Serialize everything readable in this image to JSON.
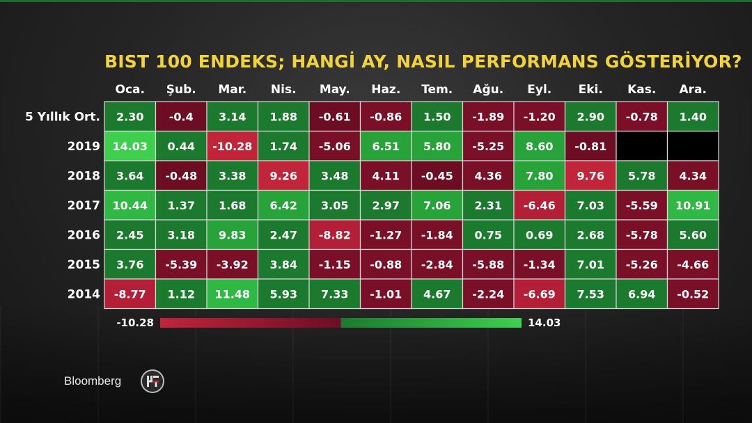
{
  "chart_data": {
    "type": "heatmap",
    "title": "BIST 100 ENDEKS; HANGİ AY, NASIL PERFORMANS GÖSTERİYOR?",
    "columns": [
      "Oca.",
      "Şub.",
      "Mar.",
      "Nis.",
      "May.",
      "Haz.",
      "Tem.",
      "Ağu.",
      "Eyl.",
      "Eki.",
      "Kas.",
      "Ara."
    ],
    "rows": [
      "5 Yıllık Ort.",
      "2019",
      "2018",
      "2017",
      "2016",
      "2015",
      "2014"
    ],
    "values": [
      [
        "2.30",
        "-0.4",
        "3.14",
        "1.88",
        "-0.61",
        "-0.86",
        "1.50",
        "-1.89",
        "-1.20",
        "2.90",
        "-0.78",
        "1.40"
      ],
      [
        "14.03",
        "0.44",
        "-10.28",
        "1.74",
        "-5.06",
        "6.51",
        "5.80",
        "-5.25",
        "8.60",
        "-0.81",
        null,
        null
      ],
      [
        "3.64",
        "-0.48",
        "3.38",
        "9.26",
        "3.48",
        "4.11",
        "-0.45",
        "4.36",
        "7.80",
        "9.76",
        "5.78",
        "4.34"
      ],
      [
        "10.44",
        "1.37",
        "1.68",
        "6.42",
        "3.05",
        "2.97",
        "7.06",
        "2.31",
        "-6.46",
        "7.03",
        "-5.59",
        "10.91"
      ],
      [
        "2.45",
        "3.18",
        "9.83",
        "2.47",
        "-8.82",
        "-1.27",
        "-1.84",
        "0.75",
        "0.69",
        "2.68",
        "-5.78",
        "5.60"
      ],
      [
        "3.76",
        "-5.39",
        "-3.92",
        "3.84",
        "-1.15",
        "-0.88",
        "-2.84",
        "-5.88",
        "-1.34",
        "7.01",
        "-5.26",
        "-4.66"
      ],
      [
        "-8.77",
        "1.12",
        "11.48",
        "5.93",
        "7.33",
        "-1.01",
        "4.67",
        "-2.24",
        "-6.69",
        "7.53",
        "6.94",
        "-0.52"
      ]
    ],
    "cell_colors": [
      [
        "#1b7a2e",
        "#6d0d24",
        "#1b7a2e",
        "#1b7a2e",
        "#6d0d24",
        "#7a0f28",
        "#1b7a2e",
        "#7a0f28",
        "#7a0f28",
        "#1b7a2e",
        "#7a0f28",
        "#1b7a2e"
      ],
      [
        "#3fcf4f",
        "#1b7a2e",
        "#c0253a",
        "#1b7a2e",
        "#7a0f28",
        "#27a33a",
        "#27a33a",
        "#7a0f28",
        "#27a33a",
        "#6d0d24",
        "#000000",
        "#000000"
      ],
      [
        "#1b7a2e",
        "#6d0d24",
        "#1b7a2e",
        "#c0253a",
        "#1b7a2e",
        "#7a0f28",
        "#6d0d24",
        "#7a0f28",
        "#27a33a",
        "#c0253a",
        "#1b7a2e",
        "#7a0f28"
      ],
      [
        "#2fb843",
        "#1b7a2e",
        "#1b7a2e",
        "#27a33a",
        "#1b7a2e",
        "#1b7a2e",
        "#27a33a",
        "#1b7a2e",
        "#b21f36",
        "#1b7a2e",
        "#7a0f28",
        "#2fb843"
      ],
      [
        "#1b7a2e",
        "#1b7a2e",
        "#27a33a",
        "#1b7a2e",
        "#b21f36",
        "#7a0f28",
        "#7a0f28",
        "#1b7a2e",
        "#1b7a2e",
        "#1b7a2e",
        "#7a0f28",
        "#1b7a2e"
      ],
      [
        "#1b7a2e",
        "#7a0f28",
        "#7a0f28",
        "#1b7a2e",
        "#7a0f28",
        "#7a0f28",
        "#7a0f28",
        "#7a0f28",
        "#7a0f28",
        "#1b7a2e",
        "#7a0f28",
        "#7a0f28"
      ],
      [
        "#b21f36",
        "#1b7a2e",
        "#2fb843",
        "#1b7a2e",
        "#1b7a2e",
        "#7a0f28",
        "#1b7a2e",
        "#7a0f28",
        "#b21f36",
        "#1b7a2e",
        "#1b7a2e",
        "#7a0f28"
      ]
    ],
    "legend": {
      "min_label": "-10.28",
      "max_label": "14.03",
      "colors": [
        "#c0253a",
        "#6d0d24",
        "#1b7a2e",
        "#3fcf4f"
      ]
    },
    "colors": {
      "title": "#f2d43a",
      "cell_border": "#d9d9d9",
      "text": "#ffffff"
    }
  },
  "branding": {
    "broadcaster": "Bloomberg",
    "logo_icon": "ht-logo-icon"
  }
}
